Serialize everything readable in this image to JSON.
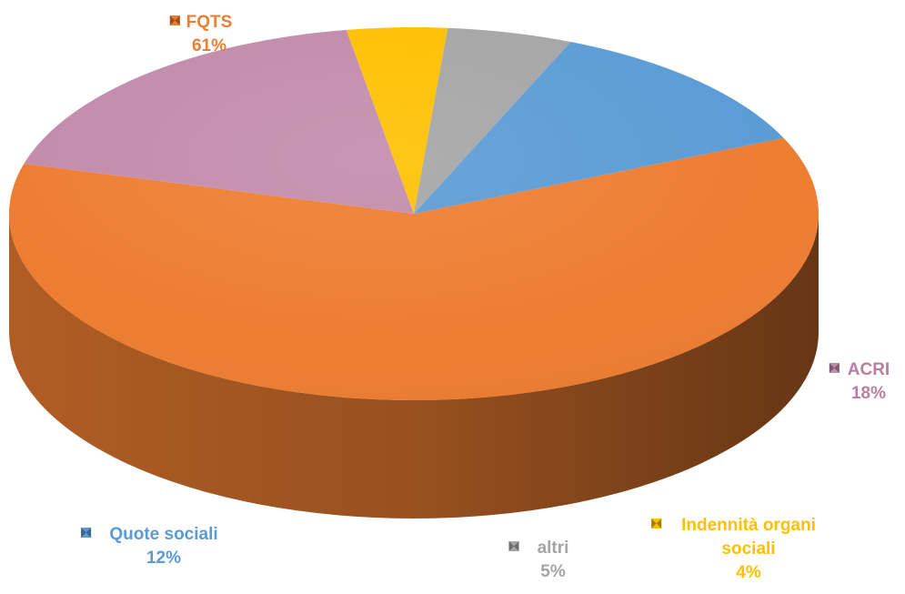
{
  "chart_data": {
    "type": "pie",
    "title": "",
    "style": "3d-tilted",
    "legend": "data-labels-around",
    "slices": [
      {
        "label": "FQTS",
        "value": 61,
        "display": "61%",
        "color": "#ED7D31"
      },
      {
        "label": "ACRI",
        "value": 18,
        "display": "18%",
        "color": "#C28BAA"
      },
      {
        "label": "Indennità organi sociali",
        "label_lines": [
          "Indennità organi",
          "sociali"
        ],
        "value": 4,
        "display": "4%",
        "color": "#FFC000"
      },
      {
        "label": "altri",
        "value": 5,
        "display": "5%",
        "color": "#A5A5A5"
      },
      {
        "label": "Quote sociali",
        "value": 12,
        "display": "12%",
        "color": "#5B9BD5"
      }
    ]
  }
}
